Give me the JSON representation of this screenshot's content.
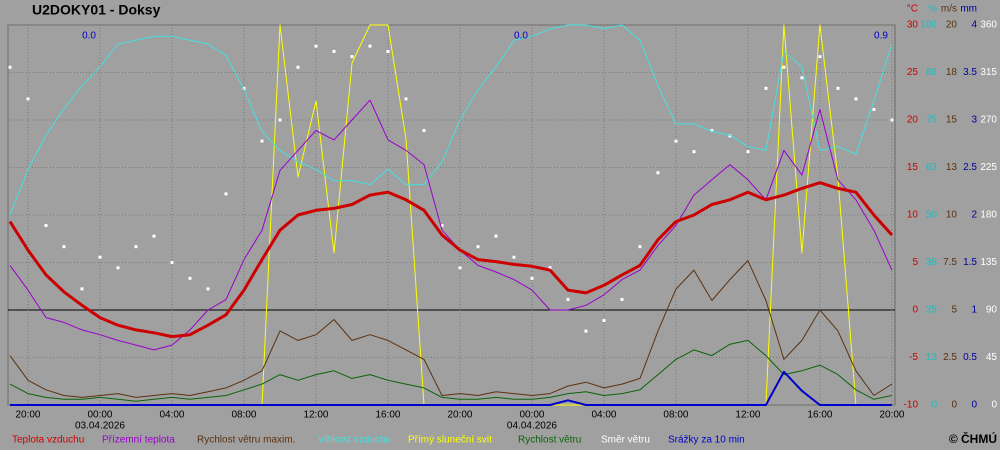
{
  "chart_data": {
    "type": "line",
    "title": "U2DOKY01 - Doksy",
    "credit": "© ČHMÚ",
    "grid": true,
    "x": [
      -5,
      -4,
      -3,
      -2,
      -1,
      0,
      1,
      2,
      3,
      4,
      5,
      6,
      7,
      8,
      9,
      10,
      11,
      12,
      13,
      14,
      15,
      16,
      17,
      18,
      19,
      20,
      21,
      22,
      23,
      24,
      25,
      26,
      27,
      28,
      29,
      30,
      31,
      32,
      33,
      34,
      35,
      36,
      37,
      38,
      39,
      40,
      41,
      42,
      43,
      44
    ],
    "xlim": [
      -5.11,
      44.17
    ],
    "xticks": [
      {
        "value": -4,
        "label": "20:00"
      },
      {
        "value": 0,
        "label": "00:00"
      },
      {
        "value": 4,
        "label": "04:00"
      },
      {
        "value": 8,
        "label": "08:00"
      },
      {
        "value": 12,
        "label": "12:00"
      },
      {
        "value": 16,
        "label": "16:00"
      },
      {
        "value": 20,
        "label": "20:00"
      },
      {
        "value": 24,
        "label": "00:00"
      },
      {
        "value": 28,
        "label": "04:00"
      },
      {
        "value": 32,
        "label": "08:00"
      },
      {
        "value": 36,
        "label": "12:00"
      },
      {
        "value": 40,
        "label": "16:00"
      },
      {
        "value": 44,
        "label": "20:00"
      }
    ],
    "date_labels": [
      {
        "value": 0,
        "label": "03.04.2026"
      },
      {
        "value": 24,
        "label": "04.04.2026"
      }
    ],
    "axes": [
      {
        "unit": "°C",
        "color": "#cc0000",
        "lim": [
          -10,
          30
        ],
        "ticks": [
          -10,
          -5,
          0,
          5,
          10,
          15,
          20,
          25,
          30
        ]
      },
      {
        "unit": "%",
        "color": "#22bbbb",
        "lim": [
          0,
          100
        ],
        "ticks": [
          0,
          {
            "value": 12.5,
            "label": "13"
          },
          25,
          {
            "value": 37.5,
            "label": "38"
          },
          50,
          {
            "value": 62.5,
            "label": "63"
          },
          75,
          {
            "value": 87.5,
            "label": "88"
          },
          100
        ]
      },
      {
        "unit": "m/s",
        "color": "#5a3210",
        "lim": [
          0,
          20
        ],
        "ticks": [
          0,
          2.5,
          5,
          7.5,
          10,
          {
            "value": 12.5,
            "label": "13"
          },
          15,
          {
            "value": 17.5,
            "label": "18"
          },
          20
        ]
      },
      {
        "unit": "mm",
        "color": "#000099",
        "lim": [
          0,
          4
        ],
        "ticks": [
          0,
          0.5,
          1,
          1.5,
          2,
          2.5,
          3,
          3.5,
          4
        ]
      },
      {
        "color": "#ffffff",
        "lim": [
          0,
          360
        ],
        "ticks": [
          0,
          45,
          90,
          135,
          180,
          225,
          270,
          315,
          360
        ]
      }
    ],
    "series": [
      {
        "name": "Teplota vzduchu",
        "color": "#cc0000",
        "axis": 0,
        "style": "line",
        "width": 3,
        "values": [
          9.3,
          6.3,
          3.7,
          1.9,
          0.5,
          -0.8,
          -1.6,
          -2.1,
          -2.4,
          -2.8,
          -2.6,
          -1.6,
          -0.5,
          2.1,
          5.3,
          8.4,
          10.0,
          10.5,
          10.7,
          11.1,
          12.1,
          12.4,
          11.6,
          10.5,
          7.9,
          6.3,
          5.3,
          5.1,
          4.8,
          4.6,
          4.2,
          2.1,
          1.8,
          2.6,
          3.7,
          4.7,
          7.4,
          9.3,
          10.0,
          11.1,
          11.6,
          12.4,
          11.6,
          12.1,
          12.8,
          13.4,
          12.8,
          12.4,
          10.0,
          7.9
        ]
      },
      {
        "name": "Přízemní teplota",
        "color": "#9900cc",
        "axis": 0,
        "style": "line",
        "width": 1,
        "values": [
          4.7,
          2.1,
          -0.8,
          -1.3,
          -2.1,
          -2.6,
          -3.2,
          -3.7,
          -4.2,
          -3.7,
          -2.1,
          0,
          1.1,
          5.3,
          8.4,
          14.7,
          16.8,
          18.9,
          17.9,
          20,
          22.1,
          17.9,
          16.8,
          15.3,
          8.4,
          6.3,
          4.7,
          4,
          3.2,
          2.1,
          0,
          0,
          0.5,
          1.6,
          3.2,
          4.2,
          6.8,
          8.9,
          12.1,
          13.7,
          15.3,
          13.7,
          11.6,
          16.8,
          14.2,
          21.1,
          13.7,
          11.6,
          8.4,
          4.2
        ]
      },
      {
        "name": "Rychlost větru maxim.",
        "color": "#5a3210",
        "axis": 2,
        "style": "line",
        "width": 1,
        "values": [
          2.6,
          1.3,
          0.8,
          0.5,
          0.4,
          0.5,
          0.6,
          0.4,
          0.5,
          0.6,
          0.5,
          0.7,
          0.9,
          1.3,
          1.8,
          3.9,
          3.4,
          3.7,
          4.5,
          3.4,
          3.7,
          3.4,
          2.9,
          2.4,
          0.5,
          0.6,
          0.5,
          0.7,
          0.6,
          0.5,
          0.6,
          1.0,
          1.2,
          0.9,
          1.1,
          1.4,
          3.9,
          6.1,
          7.1,
          5.5,
          6.6,
          7.6,
          5.5,
          2.4,
          3.4,
          5.0,
          3.9,
          1.8,
          0.5,
          1.1
        ]
      },
      {
        "name": "Vlhkost vzduchu",
        "color": "#44e0e0",
        "axis": 1,
        "style": "line",
        "width": 1,
        "values": [
          50,
          62,
          71,
          78,
          84,
          89,
          95,
          96,
          97,
          97,
          96,
          95,
          92,
          83,
          72,
          67,
          64,
          62,
          59,
          59,
          58,
          62,
          58,
          58,
          64,
          75,
          83,
          89,
          96,
          97,
          99,
          100,
          100,
          99,
          100,
          96,
          84,
          74,
          74,
          72,
          71,
          68,
          67,
          93,
          89,
          67,
          68,
          66,
          80,
          95
        ]
      },
      {
        "name": "Přímý sluneční svit",
        "color": "#ffff00",
        "axis": 1,
        "style": "line",
        "width": 1,
        "values": [
          0,
          0,
          0,
          0,
          0,
          0,
          0,
          0,
          0,
          0,
          0,
          0,
          0,
          0,
          0,
          100,
          60,
          80,
          40,
          90,
          100,
          100,
          70,
          0,
          0,
          0,
          0,
          0,
          0,
          0,
          0,
          0,
          0,
          0,
          0,
          0,
          0,
          0,
          0,
          0,
          0,
          0,
          0,
          100,
          40,
          100,
          60,
          0,
          0,
          0
        ]
      },
      {
        "name": "Rychlost větru",
        "color": "#0a640a",
        "axis": 2,
        "style": "line",
        "width": 1,
        "values": [
          1.1,
          0.6,
          0.4,
          0.3,
          0.3,
          0.4,
          0.3,
          0.2,
          0.3,
          0.4,
          0.3,
          0.4,
          0.5,
          0.8,
          1.1,
          1.6,
          1.3,
          1.6,
          1.8,
          1.4,
          1.6,
          1.3,
          1.1,
          0.9,
          0.4,
          0.3,
          0.3,
          0.4,
          0.3,
          0.3,
          0.4,
          0.6,
          0.7,
          0.5,
          0.6,
          0.8,
          1.6,
          2.4,
          2.9,
          2.6,
          3.2,
          3.4,
          2.6,
          1.6,
          1.8,
          2.1,
          1.6,
          0.8,
          0.3,
          0.5
        ]
      },
      {
        "name": "Směr větru",
        "color": "#ffffff",
        "axis": 4,
        "style": "dots",
        "values": [
          320,
          290,
          170,
          150,
          110,
          140,
          130,
          150,
          160,
          135,
          120,
          110,
          200,
          300,
          250,
          270,
          320,
          340,
          335,
          330,
          340,
          335,
          290,
          260,
          170,
          130,
          150,
          160,
          140,
          120,
          130,
          100,
          70,
          80,
          100,
          150,
          220,
          250,
          240,
          260,
          255,
          240,
          300,
          320,
          310,
          330,
          300,
          290,
          280,
          270
        ]
      },
      {
        "name": "Srážky za 10 min",
        "color": "#0000cc",
        "axis": 3,
        "style": "line",
        "width": 2,
        "values": [
          0,
          0,
          0,
          0,
          0,
          0,
          0,
          0,
          0,
          0,
          0,
          0,
          0,
          0,
          0,
          0,
          0,
          0,
          0,
          0,
          0,
          0,
          0,
          0,
          0,
          0,
          0,
          0,
          0,
          0,
          0,
          0.05,
          0,
          0,
          0,
          0,
          0,
          0,
          0,
          0,
          0,
          0,
          0,
          0.35,
          0.15,
          0,
          0,
          0,
          0,
          0
        ]
      }
    ],
    "daily_precip": {
      "color": "#0000cc",
      "x": [
        0,
        24,
        44
      ],
      "values": [
        0,
        0,
        0.9
      ],
      "value_labels": [
        "0.0",
        "0.0",
        "0.9"
      ]
    }
  }
}
